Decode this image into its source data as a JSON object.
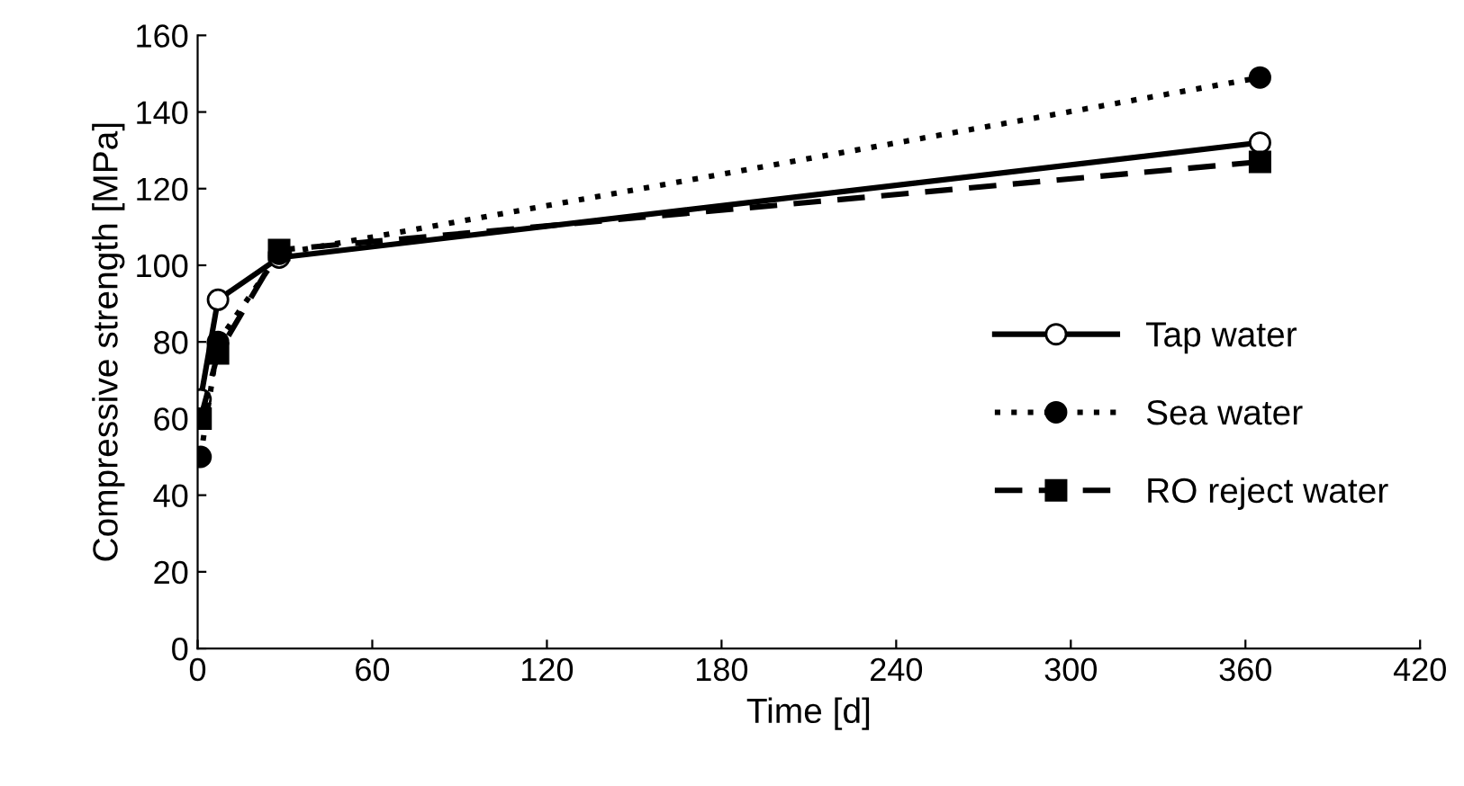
{
  "chart_data": {
    "type": "line",
    "xlabel": "Time [d]",
    "ylabel": "Compressive strength [MPa]",
    "x": [
      1,
      7,
      28,
      365
    ],
    "series": [
      {
        "name": "Tap water",
        "color": "#000000",
        "values": [
          65,
          91,
          102,
          132
        ],
        "marker": "circle",
        "line_style": "solid"
      },
      {
        "name": "Sea water",
        "color": "#000000",
        "values": [
          50,
          80,
          103,
          149
        ],
        "marker": "circle",
        "line_style": "dotted"
      },
      {
        "name": "RO reject water",
        "color": "#000000",
        "values": [
          60,
          77,
          104,
          127
        ],
        "marker": "square",
        "line_style": "dashed"
      }
    ],
    "xlim": [
      0,
      420
    ],
    "xticks": [
      0,
      60,
      120,
      180,
      240,
      300,
      360,
      420
    ],
    "ylim": [
      0,
      160
    ],
    "yticks": [
      0,
      20,
      40,
      60,
      80,
      100,
      120,
      140,
      160
    ],
    "grid": false,
    "legend": "right"
  }
}
